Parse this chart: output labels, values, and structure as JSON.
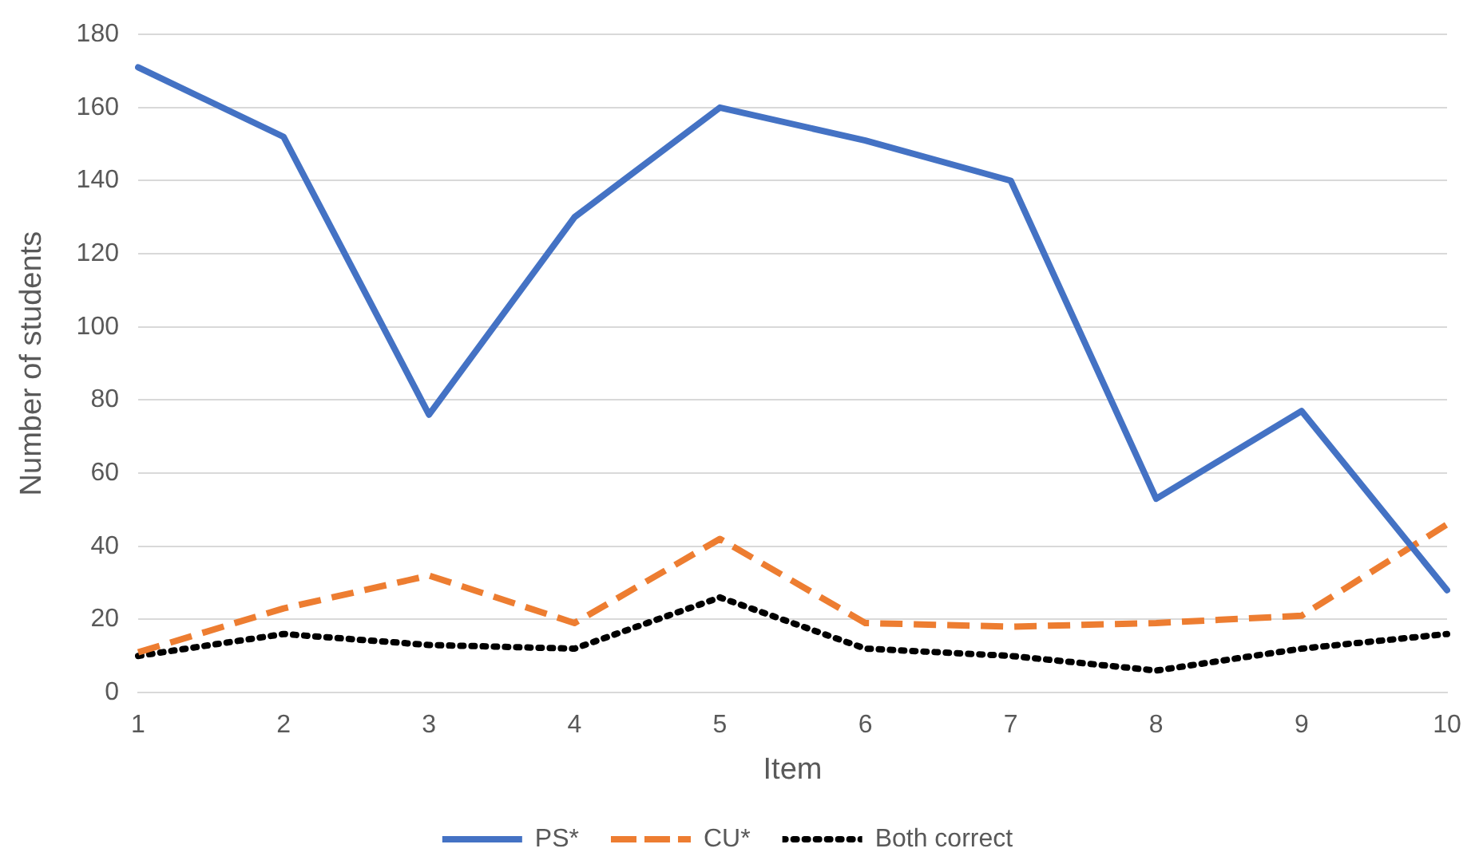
{
  "chart_data": {
    "type": "line",
    "xlabel": "Item",
    "ylabel": "Number of students",
    "categories": [
      "1",
      "2",
      "3",
      "4",
      "5",
      "6",
      "7",
      "8",
      "9",
      "10"
    ],
    "series": [
      {
        "name": "PS*",
        "color": "#4472c4",
        "line_style": "solid",
        "values": [
          171,
          152,
          76,
          130,
          160,
          151,
          140,
          53,
          77,
          28
        ]
      },
      {
        "name": "CU*",
        "color": "#ed7d31",
        "line_style": "dashed",
        "values": [
          11,
          23,
          32,
          19,
          42,
          19,
          18,
          19,
          21,
          46
        ]
      },
      {
        "name": "Both correct",
        "color": "#000000",
        "line_style": "dotted",
        "values": [
          10,
          16,
          13,
          12,
          26,
          12,
          10,
          6,
          12,
          16
        ]
      }
    ],
    "ylim": [
      0,
      180
    ],
    "yticks": [
      0,
      20,
      40,
      60,
      80,
      100,
      120,
      140,
      160,
      180
    ],
    "grid": "y",
    "legend": "bottom",
    "marker": "none"
  }
}
